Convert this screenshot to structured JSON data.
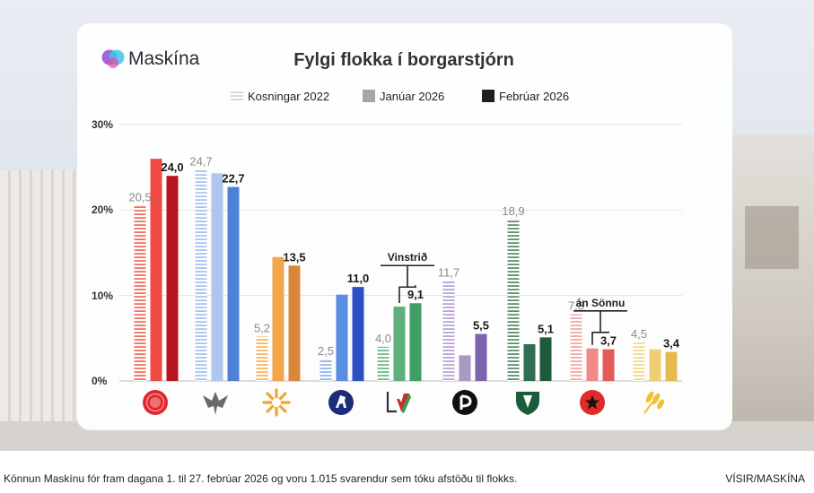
{
  "chart_data": {
    "type": "bar",
    "title": "Fylgi flokka í borgarstjórn",
    "brand": "Maskína",
    "legend_position": "top",
    "grid": true,
    "ylim": [
      0,
      30
    ],
    "yticks": [
      "0%",
      "10%",
      "20%",
      "30%"
    ],
    "series": [
      {
        "name": "Kosningar 2022",
        "style": "striped"
      },
      {
        "name": "Janúar 2026",
        "style": "light"
      },
      {
        "name": "Febrúar 2026",
        "style": "dark"
      }
    ],
    "categories": [
      {
        "icon": "rose-icon",
        "colors": [
          "#f07060",
          "#ef4b43",
          "#b8141b"
        ],
        "values": [
          20.5,
          26.0,
          24.0
        ],
        "labels": [
          "20,5",
          "",
          "24,0"
        ]
      },
      {
        "icon": "falcon-icon",
        "colors": [
          "#a9c3f0",
          "#aec6ee",
          "#4e82d8"
        ],
        "values": [
          24.7,
          24.3,
          22.7
        ],
        "labels": [
          "24,7",
          "",
          "22,7"
        ]
      },
      {
        "icon": "sun-icon",
        "colors": [
          "#f6b463",
          "#f3a54a",
          "#d9883a"
        ],
        "values": [
          5.2,
          14.5,
          13.5
        ],
        "labels": [
          "5,2",
          "",
          "13,5"
        ]
      },
      {
        "icon": "horse-icon",
        "colors": [
          "#8fb6ee",
          "#5a8ee0",
          "#2c4fc4"
        ],
        "values": [
          2.5,
          10.1,
          11.0
        ],
        "labels": [
          "2,5",
          "",
          "11,0"
        ]
      },
      {
        "icon": "v-party-icon",
        "colors": [
          "#6dbb86",
          "#5fb07c",
          "#3f9d66"
        ],
        "values": [
          4.0,
          8.7,
          9.1
        ],
        "labels": [
          "4,0",
          "",
          "9,1"
        ]
      },
      {
        "icon": "pirate-icon",
        "colors": [
          "#b8a4d6",
          "#a89bc2",
          "#7b63ad"
        ],
        "values": [
          11.7,
          3.0,
          5.5
        ],
        "labels": [
          "11,7",
          "",
          "5,5"
        ]
      },
      {
        "icon": "shield-icon",
        "colors": [
          "#5f8f6d",
          "#2f6e50",
          "#1f5a3f"
        ],
        "values": [
          18.9,
          4.3,
          5.1
        ],
        "labels": [
          "18,9",
          "",
          "5,1"
        ]
      },
      {
        "icon": "star-icon",
        "colors": [
          "#f2a9a6",
          "#ef8a86",
          "#e45a57"
        ],
        "values": [
          7.8,
          3.8,
          3.7
        ],
        "labels": [
          "7,8",
          "",
          "3,7"
        ]
      },
      {
        "icon": "wheat-icon",
        "colors": [
          "#f3d891",
          "#efce74",
          "#e6b94b"
        ],
        "values": [
          4.5,
          3.7,
          3.4
        ],
        "labels": [
          "4,5",
          "",
          "3,4"
        ]
      }
    ],
    "annotations": [
      {
        "text": "Vinstrið",
        "category": 4
      },
      {
        "text": "án Sönnu",
        "category": 7
      }
    ]
  },
  "caption": "Könnun Maskínu fór fram dagana 1. til 27. febrúar 2026 og voru 1.015 svarendur sem tóku afstöðu til flokks.",
  "source": "VÍSIR/MASKÍNA"
}
